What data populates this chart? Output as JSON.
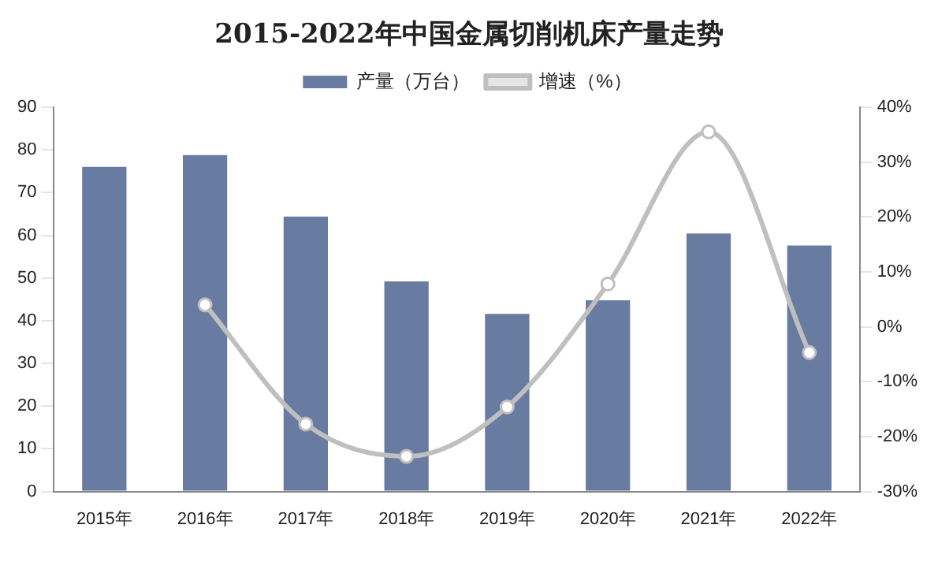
{
  "chart_data": {
    "type": "bar",
    "title": "2015-2022年中国金属切削机床产量走势",
    "categories": [
      "2015年",
      "2016年",
      "2017年",
      "2018年",
      "2019年",
      "2020年",
      "2021年",
      "2022年"
    ],
    "series": [
      {
        "name": "产量（万台）",
        "color": "#687ba1",
        "values": [
          76,
          78.8,
          64.4,
          49.2,
          41.6,
          44.8,
          60.4,
          57.6
        ]
      },
      {
        "name": "增速（%）",
        "type": "line",
        "axis": "y2",
        "color": "#bfbfbf",
        "values": [
          null,
          4,
          -17.7,
          -23.6,
          -14.6,
          7.8,
          35.5,
          -4.7
        ]
      }
    ],
    "ylim": [
      0,
      90
    ],
    "yticks": [
      0,
      10,
      20,
      30,
      40,
      50,
      60,
      70,
      80,
      90
    ],
    "y2lim": [
      -30,
      40
    ],
    "y2ticks": [
      {
        "value": -30,
        "label": "-30%"
      },
      {
        "value": -20,
        "label": "-20%"
      },
      {
        "value": -10,
        "label": "-10%"
      },
      {
        "value": 0,
        "label": "0%"
      },
      {
        "value": 10,
        "label": "10%"
      },
      {
        "value": 20,
        "label": "20%"
      },
      {
        "value": 30,
        "label": "30%"
      },
      {
        "value": 40,
        "label": "40%"
      }
    ],
    "grid": false,
    "legend": "top",
    "marker": "circle"
  }
}
